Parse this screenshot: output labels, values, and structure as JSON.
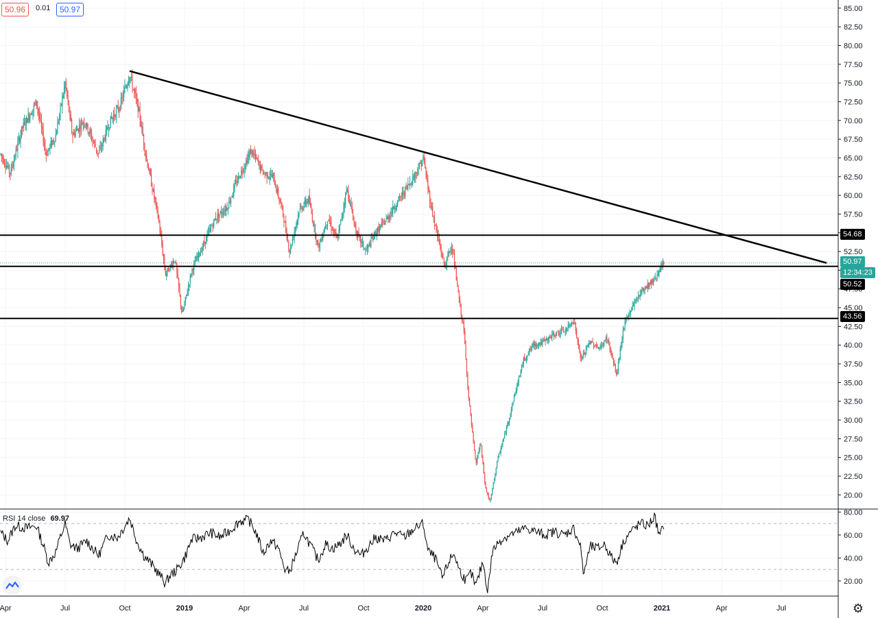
{
  "header": {
    "open_value": "50.96",
    "change_value": "0.01",
    "close_value": "50.97"
  },
  "rsi": {
    "label": "RSI 14 close",
    "value": "69.97"
  },
  "price_labels": {
    "resistance": "54.68",
    "last": "50.97",
    "countdown": "12:34:23",
    "mid": "50.52",
    "support": "43.56"
  },
  "colors": {
    "up": "#26a69a",
    "down": "#ef5350",
    "line": "#000000",
    "grid": "#f0f3fa",
    "teal_label": "#26a69a"
  },
  "chart_data": [
    {
      "type": "candlestick",
      "title": "",
      "y_axis_ticks": [
        "20.00",
        "22.50",
        "25.00",
        "27.50",
        "30.00",
        "32.50",
        "35.00",
        "37.50",
        "40.00",
        "42.50",
        "45.00",
        "47.50",
        "50.00",
        "52.50",
        "55.00",
        "57.50",
        "60.00",
        "62.50",
        "65.00",
        "67.50",
        "70.00",
        "72.50",
        "75.00",
        "77.50",
        "80.00",
        "82.50",
        "85.00"
      ],
      "ylim": [
        18.2,
        85.9
      ],
      "x_axis_ticks": [
        {
          "label": "Apr",
          "t": -0.75
        },
        {
          "label": "Jul",
          "t": -0.5
        },
        {
          "label": "Oct",
          "t": -0.25
        },
        {
          "label": "2019",
          "t": 0.0
        },
        {
          "label": "Apr",
          "t": 0.25
        },
        {
          "label": "Jul",
          "t": 0.5
        },
        {
          "label": "Oct",
          "t": 0.75
        },
        {
          "label": "2020",
          "t": 1.0
        },
        {
          "label": "Apr",
          "t": 1.25
        },
        {
          "label": "Jul",
          "t": 1.5
        },
        {
          "label": "Oct",
          "t": 1.75
        },
        {
          "label": "2021",
          "t": 2.0
        },
        {
          "label": "Apr",
          "t": 2.25
        },
        {
          "label": "Jul",
          "t": 2.5
        }
      ],
      "xlim": [
        -0.77,
        2.69
      ],
      "price_path": [
        {
          "t": -0.77,
          "v": 65.5
        },
        {
          "t": -0.73,
          "v": 63.0
        },
        {
          "t": -0.68,
          "v": 69.0
        },
        {
          "t": -0.62,
          "v": 72.5
        },
        {
          "t": -0.58,
          "v": 65.5
        },
        {
          "t": -0.54,
          "v": 68.0
        },
        {
          "t": -0.5,
          "v": 75.0
        },
        {
          "t": -0.47,
          "v": 68.0
        },
        {
          "t": -0.42,
          "v": 70.0
        },
        {
          "t": -0.36,
          "v": 65.5
        },
        {
          "t": -0.31,
          "v": 70.0
        },
        {
          "t": -0.27,
          "v": 72.0
        },
        {
          "t": -0.23,
          "v": 76.2
        },
        {
          "t": -0.19,
          "v": 71.0
        },
        {
          "t": -0.16,
          "v": 65.0
        },
        {
          "t": -0.11,
          "v": 57.0
        },
        {
          "t": -0.08,
          "v": 49.5
        },
        {
          "t": -0.04,
          "v": 51.5
        },
        {
          "t": -0.01,
          "v": 44.0
        },
        {
          "t": 0.03,
          "v": 50.0
        },
        {
          "t": 0.08,
          "v": 53.5
        },
        {
          "t": 0.13,
          "v": 57.0
        },
        {
          "t": 0.18,
          "v": 58.5
        },
        {
          "t": 0.22,
          "v": 62.0
        },
        {
          "t": 0.28,
          "v": 66.0
        },
        {
          "t": 0.33,
          "v": 63.0
        },
        {
          "t": 0.37,
          "v": 62.5
        },
        {
          "t": 0.41,
          "v": 58.0
        },
        {
          "t": 0.44,
          "v": 52.5
        },
        {
          "t": 0.48,
          "v": 58.0
        },
        {
          "t": 0.52,
          "v": 59.5
        },
        {
          "t": 0.56,
          "v": 53.0
        },
        {
          "t": 0.6,
          "v": 57.0
        },
        {
          "t": 0.64,
          "v": 54.0
        },
        {
          "t": 0.68,
          "v": 61.0
        },
        {
          "t": 0.72,
          "v": 55.0
        },
        {
          "t": 0.76,
          "v": 52.5
        },
        {
          "t": 0.8,
          "v": 55.0
        },
        {
          "t": 0.84,
          "v": 56.5
        },
        {
          "t": 0.88,
          "v": 58.5
        },
        {
          "t": 0.93,
          "v": 61.0
        },
        {
          "t": 0.97,
          "v": 63.0
        },
        {
          "t": 1.0,
          "v": 65.0
        },
        {
          "t": 1.03,
          "v": 59.0
        },
        {
          "t": 1.06,
          "v": 54.5
        },
        {
          "t": 1.09,
          "v": 50.5
        },
        {
          "t": 1.12,
          "v": 53.5
        },
        {
          "t": 1.15,
          "v": 46.0
        },
        {
          "t": 1.17,
          "v": 42.0
        },
        {
          "t": 1.19,
          "v": 33.0
        },
        {
          "t": 1.22,
          "v": 24.0
        },
        {
          "t": 1.24,
          "v": 27.0
        },
        {
          "t": 1.26,
          "v": 21.0
        },
        {
          "t": 1.28,
          "v": 19.0
        },
        {
          "t": 1.31,
          "v": 24.5
        },
        {
          "t": 1.35,
          "v": 29.0
        },
        {
          "t": 1.38,
          "v": 33.0
        },
        {
          "t": 1.42,
          "v": 38.0
        },
        {
          "t": 1.46,
          "v": 40.0
        },
        {
          "t": 1.51,
          "v": 40.5
        },
        {
          "t": 1.55,
          "v": 41.5
        },
        {
          "t": 1.6,
          "v": 42.0
        },
        {
          "t": 1.63,
          "v": 43.5
        },
        {
          "t": 1.66,
          "v": 38.0
        },
        {
          "t": 1.7,
          "v": 40.5
        },
        {
          "t": 1.74,
          "v": 39.5
        },
        {
          "t": 1.77,
          "v": 41.0
        },
        {
          "t": 1.81,
          "v": 36.0
        },
        {
          "t": 1.84,
          "v": 42.5
        },
        {
          "t": 1.88,
          "v": 45.5
        },
        {
          "t": 1.92,
          "v": 47.5
        },
        {
          "t": 1.96,
          "v": 48.5
        },
        {
          "t": 2.01,
          "v": 50.97
        }
      ],
      "horizontal_levels": [
        54.68,
        50.52,
        43.56
      ],
      "trendline": {
        "start": {
          "t": -0.23,
          "v": 76.6
        },
        "end": {
          "t": 2.69,
          "v": 50.97
        }
      }
    },
    {
      "type": "line",
      "title": "RSI 14 close",
      "y_axis_ticks": [
        "20.00",
        "40.00",
        "60.00",
        "80.00"
      ],
      "ylim": [
        8,
        82
      ],
      "guide_levels": [
        70,
        30
      ],
      "series": [
        {
          "values": [
            {
              "t": -0.77,
              "v": 62
            },
            {
              "t": -0.74,
              "v": 55
            },
            {
              "t": -0.71,
              "v": 68
            },
            {
              "t": -0.66,
              "v": 66
            },
            {
              "t": -0.62,
              "v": 68
            },
            {
              "t": -0.59,
              "v": 50
            },
            {
              "t": -0.57,
              "v": 36
            },
            {
              "t": -0.54,
              "v": 45
            },
            {
              "t": -0.52,
              "v": 58
            },
            {
              "t": -0.5,
              "v": 70
            },
            {
              "t": -0.48,
              "v": 52
            },
            {
              "t": -0.45,
              "v": 48
            },
            {
              "t": -0.41,
              "v": 55
            },
            {
              "t": -0.36,
              "v": 42
            },
            {
              "t": -0.32,
              "v": 60
            },
            {
              "t": -0.28,
              "v": 58
            },
            {
              "t": -0.25,
              "v": 68
            },
            {
              "t": -0.23,
              "v": 75
            },
            {
              "t": -0.2,
              "v": 55
            },
            {
              "t": -0.17,
              "v": 42
            },
            {
              "t": -0.14,
              "v": 35
            },
            {
              "t": -0.11,
              "v": 27
            },
            {
              "t": -0.08,
              "v": 18
            },
            {
              "t": -0.06,
              "v": 25
            },
            {
              "t": -0.03,
              "v": 30
            },
            {
              "t": 0.0,
              "v": 40
            },
            {
              "t": 0.03,
              "v": 56
            },
            {
              "t": 0.07,
              "v": 58
            },
            {
              "t": 0.11,
              "v": 62
            },
            {
              "t": 0.15,
              "v": 58
            },
            {
              "t": 0.19,
              "v": 64
            },
            {
              "t": 0.23,
              "v": 72
            },
            {
              "t": 0.27,
              "v": 73
            },
            {
              "t": 0.3,
              "v": 62
            },
            {
              "t": 0.33,
              "v": 44
            },
            {
              "t": 0.36,
              "v": 55
            },
            {
              "t": 0.39,
              "v": 50
            },
            {
              "t": 0.42,
              "v": 30
            },
            {
              "t": 0.44,
              "v": 28
            },
            {
              "t": 0.47,
              "v": 45
            },
            {
              "t": 0.5,
              "v": 62
            },
            {
              "t": 0.53,
              "v": 50
            },
            {
              "t": 0.56,
              "v": 38
            },
            {
              "t": 0.59,
              "v": 52
            },
            {
              "t": 0.62,
              "v": 48
            },
            {
              "t": 0.65,
              "v": 52
            },
            {
              "t": 0.68,
              "v": 60
            },
            {
              "t": 0.71,
              "v": 48
            },
            {
              "t": 0.74,
              "v": 42
            },
            {
              "t": 0.77,
              "v": 50
            },
            {
              "t": 0.8,
              "v": 58
            },
            {
              "t": 0.84,
              "v": 55
            },
            {
              "t": 0.88,
              "v": 62
            },
            {
              "t": 0.92,
              "v": 58
            },
            {
              "t": 0.96,
              "v": 65
            },
            {
              "t": 1.0,
              "v": 70
            },
            {
              "t": 1.02,
              "v": 46
            },
            {
              "t": 1.05,
              "v": 40
            },
            {
              "t": 1.08,
              "v": 22
            },
            {
              "t": 1.11,
              "v": 38
            },
            {
              "t": 1.13,
              "v": 44
            },
            {
              "t": 1.15,
              "v": 30
            },
            {
              "t": 1.18,
              "v": 20
            },
            {
              "t": 1.2,
              "v": 27
            },
            {
              "t": 1.22,
              "v": 15
            },
            {
              "t": 1.25,
              "v": 37
            },
            {
              "t": 1.27,
              "v": 11
            },
            {
              "t": 1.29,
              "v": 46
            },
            {
              "t": 1.32,
              "v": 55
            },
            {
              "t": 1.36,
              "v": 60
            },
            {
              "t": 1.39,
              "v": 62
            },
            {
              "t": 1.43,
              "v": 66
            },
            {
              "t": 1.47,
              "v": 63
            },
            {
              "t": 1.51,
              "v": 60
            },
            {
              "t": 1.55,
              "v": 63
            },
            {
              "t": 1.59,
              "v": 60
            },
            {
              "t": 1.63,
              "v": 66
            },
            {
              "t": 1.66,
              "v": 50
            },
            {
              "t": 1.67,
              "v": 25
            },
            {
              "t": 1.7,
              "v": 50
            },
            {
              "t": 1.73,
              "v": 48
            },
            {
              "t": 1.76,
              "v": 52
            },
            {
              "t": 1.79,
              "v": 40
            },
            {
              "t": 1.81,
              "v": 36
            },
            {
              "t": 1.84,
              "v": 55
            },
            {
              "t": 1.87,
              "v": 63
            },
            {
              "t": 1.91,
              "v": 70
            },
            {
              "t": 1.94,
              "v": 68
            },
            {
              "t": 1.97,
              "v": 76
            },
            {
              "t": 1.99,
              "v": 58
            },
            {
              "t": 2.01,
              "v": 69.97
            }
          ]
        }
      ]
    }
  ]
}
